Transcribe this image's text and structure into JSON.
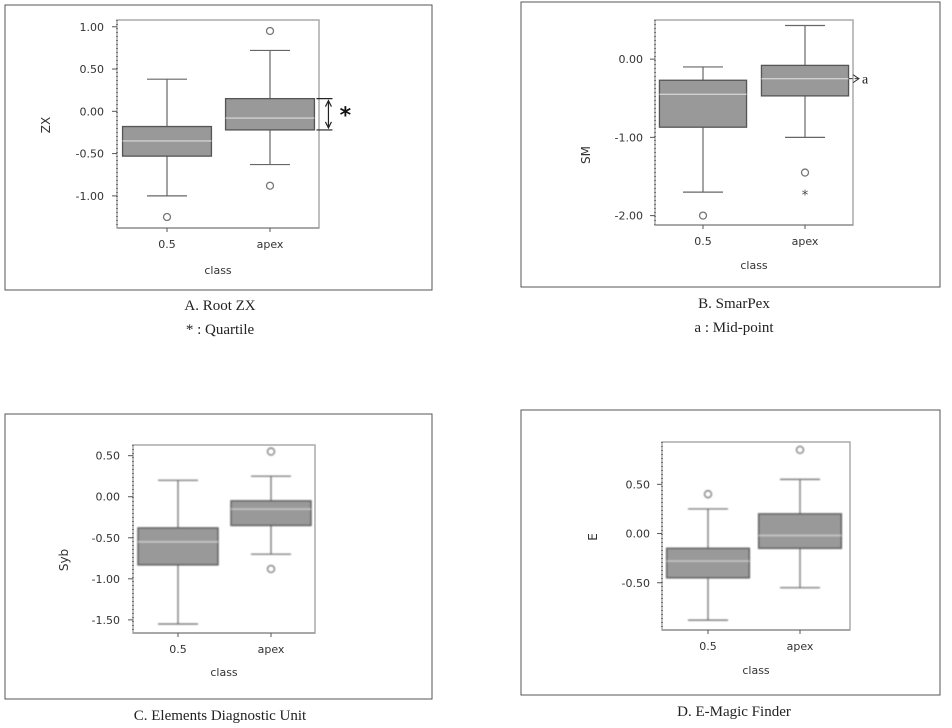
{
  "charts": [
    {
      "type": "box",
      "ylabel": "ZX",
      "xlabel": "class",
      "categories": [
        "0.5",
        "apex"
      ],
      "ylim": [
        -1.38,
        1.08
      ],
      "yticks": [
        {
          "v": 1.0,
          "label": "1.00"
        },
        {
          "v": 0.5,
          "label": "0.50"
        },
        {
          "v": 0.0,
          "label": "0.00"
        },
        {
          "v": -0.5,
          "label": "-0.50"
        },
        {
          "v": -1.0,
          "label": "-1.00"
        }
      ],
      "boxes": [
        {
          "whisker_low": -1.0,
          "q1": -0.53,
          "median": -0.35,
          "q3": -0.18,
          "whisker_high": 0.38,
          "outliers": [
            -1.25
          ],
          "extremes": []
        },
        {
          "whisker_low": -0.63,
          "q1": -0.22,
          "median": -0.08,
          "q3": 0.15,
          "whisker_high": 0.72,
          "outliers": [
            0.95,
            -0.88
          ],
          "extremes": []
        }
      ],
      "annotation": {
        "kind": "bracket",
        "box": 1,
        "from": "q1",
        "to": "q3",
        "symbol": "*"
      },
      "caption": [
        "A. Root ZX",
        "* : Quartile"
      ]
    },
    {
      "type": "box",
      "ylabel": "SM",
      "xlabel": "class",
      "categories": [
        "0.5",
        "apex"
      ],
      "ylim": [
        -2.12,
        0.5
      ],
      "yticks": [
        {
          "v": 0.0,
          "label": "0.00"
        },
        {
          "v": -1.0,
          "label": "-1.00"
        },
        {
          "v": -2.0,
          "label": "-2.00"
        }
      ],
      "boxes": [
        {
          "whisker_low": -1.7,
          "q1": -0.87,
          "median": -0.45,
          "q3": -0.27,
          "whisker_high": -0.1,
          "outliers": [
            -2.0
          ],
          "extremes": []
        },
        {
          "whisker_low": -1.0,
          "q1": -0.47,
          "median": -0.25,
          "q3": -0.08,
          "whisker_high": 0.43,
          "outliers": [
            -1.45
          ],
          "extremes": [
            -1.73
          ]
        }
      ],
      "annotation": {
        "kind": "arrow",
        "box": 1,
        "at": "median",
        "symbol": "a"
      },
      "caption": [
        "B. SmarPex",
        "a : Mid-point"
      ]
    },
    {
      "type": "box",
      "ylabel": "Syb",
      "xlabel": "class",
      "categories": [
        "0.5",
        "apex"
      ],
      "ylim": [
        -1.66,
        0.63
      ],
      "yticks": [
        {
          "v": 0.5,
          "label": "0.50"
        },
        {
          "v": 0.0,
          "label": "0.00"
        },
        {
          "v": -0.5,
          "label": "-0.50"
        },
        {
          "v": -1.0,
          "label": "-1.00"
        },
        {
          "v": -1.5,
          "label": "-1.50"
        }
      ],
      "boxes": [
        {
          "whisker_low": -1.55,
          "q1": -0.83,
          "median": -0.55,
          "q3": -0.38,
          "whisker_high": 0.2,
          "outliers": [],
          "extremes": []
        },
        {
          "whisker_low": -0.7,
          "q1": -0.35,
          "median": -0.15,
          "q3": -0.05,
          "whisker_high": 0.25,
          "outliers": [
            0.55,
            -0.88
          ],
          "extremes": []
        }
      ],
      "annotation": null,
      "caption": [
        "C. Elements Diagnostic Unit"
      ]
    },
    {
      "type": "box",
      "ylabel": "E",
      "xlabel": "class",
      "categories": [
        "0.5",
        "apex"
      ],
      "ylim": [
        -0.98,
        0.93
      ],
      "yticks": [
        {
          "v": 0.5,
          "label": "0.50"
        },
        {
          "v": 0.0,
          "label": "0.00"
        },
        {
          "v": -0.5,
          "label": "-0.50"
        }
      ],
      "boxes": [
        {
          "whisker_low": -0.88,
          "q1": -0.45,
          "median": -0.28,
          "q3": -0.15,
          "whisker_high": 0.25,
          "outliers": [
            0.4
          ],
          "extremes": []
        },
        {
          "whisker_low": -0.55,
          "q1": -0.15,
          "median": -0.02,
          "q3": 0.2,
          "whisker_high": 0.55,
          "outliers": [
            0.85
          ],
          "extremes": []
        }
      ],
      "annotation": null,
      "caption": [
        "D. E-Magic Finder"
      ]
    }
  ],
  "colors": {
    "box_fill": "#999999",
    "box_stroke": "#555555",
    "median": "#d0d0d0",
    "whisker": "#666666",
    "frame": "#888888",
    "text": "#333333"
  }
}
